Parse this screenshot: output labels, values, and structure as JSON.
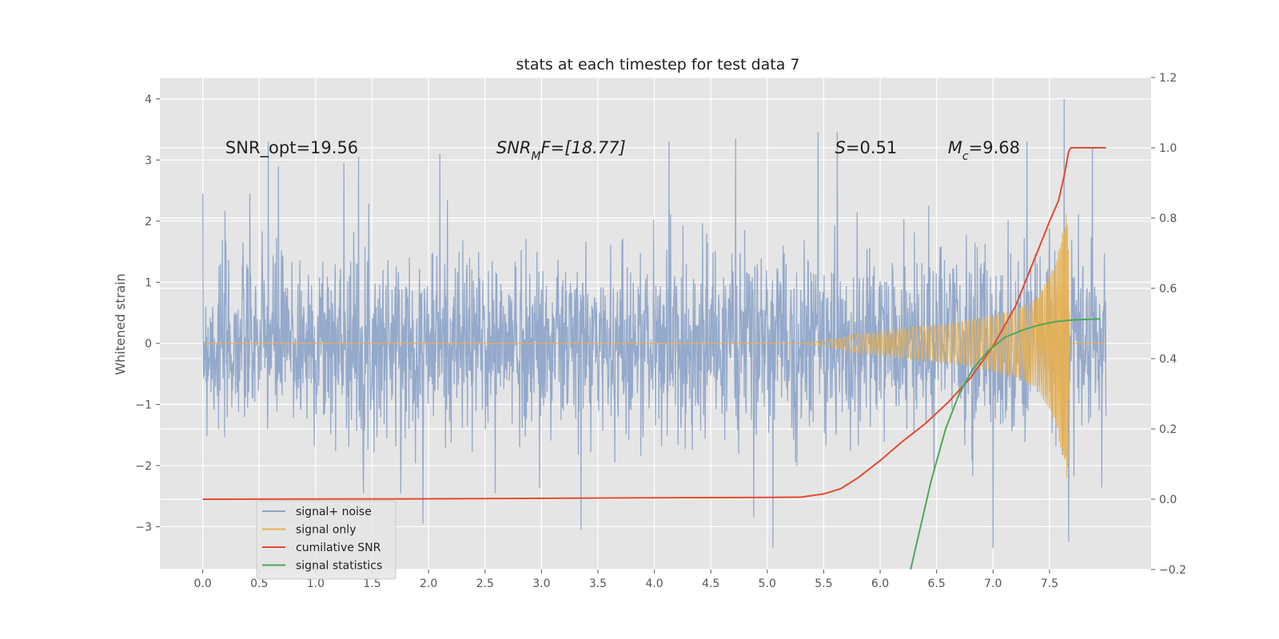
{
  "chart_data": {
    "type": "line",
    "title": "stats at each timestep for test data 7",
    "ylabel": "Whitened strain",
    "xlabel": "",
    "xlim": [
      -0.38,
      8.4
    ],
    "ylim": [
      -3.7,
      4.35
    ],
    "y2lim": [
      -0.2,
      1.2
    ],
    "x_ticks": [
      "0.0",
      "0.5",
      "1.0",
      "1.5",
      "2.0",
      "2.5",
      "3.0",
      "3.5",
      "4.0",
      "4.5",
      "5.0",
      "5.5",
      "6.0",
      "6.5",
      "7.0",
      "7.5"
    ],
    "y_ticks": [
      "−3",
      "−2",
      "−1",
      "0",
      "1",
      "2",
      "3",
      "4"
    ],
    "y2_ticks": [
      "−0.2",
      "0.0",
      "0.2",
      "0.4",
      "0.6",
      "0.8",
      "1.0",
      "1.2"
    ],
    "grid": true,
    "legend_position": "lower-left",
    "background_color": "#e5e5e5",
    "annotations": [
      {
        "x": 0.2,
        "y": 3.2,
        "text": "SNR_opt=19.56"
      },
      {
        "x": 2.6,
        "y": 3.2,
        "text": "SNR",
        "sub": "M",
        "tail": "F=[18.77]",
        "italic": true
      },
      {
        "x": 5.6,
        "y": 3.2,
        "text": "S",
        "tail": "=0.51",
        "italic": true
      },
      {
        "x": 6.6,
        "y": 3.2,
        "text": "M",
        "sub": "c",
        "tail": "=9.68",
        "italic": true
      }
    ],
    "series": [
      {
        "name": "signal+ noise",
        "color": "#8fa5c9",
        "kind": "noise",
        "x_range": [
          0.0,
          8.0
        ],
        "typical_amplitude": 1.2,
        "peak_values": [
          {
            "x": 0.58,
            "y": 3.3
          },
          {
            "x": 0.67,
            "y": 2.9
          },
          {
            "x": 1.25,
            "y": 2.95
          },
          {
            "x": 1.38,
            "y": 3.05
          },
          {
            "x": 2.1,
            "y": 3.1
          },
          {
            "x": 4.13,
            "y": 3.3
          },
          {
            "x": 4.72,
            "y": 3.35
          },
          {
            "x": 5.45,
            "y": 3.45
          },
          {
            "x": 5.62,
            "y": 3.45
          },
          {
            "x": 7.3,
            "y": 3.3
          },
          {
            "x": 7.63,
            "y": 4.0
          },
          {
            "x": 7.88,
            "y": 3.2
          },
          {
            "x": 3.35,
            "y": -3.05
          },
          {
            "x": 4.88,
            "y": -2.85
          },
          {
            "x": 5.05,
            "y": -3.35
          },
          {
            "x": 7.0,
            "y": -3.35
          },
          {
            "x": 7.67,
            "y": -3.25
          },
          {
            "x": 1.95,
            "y": -2.95
          }
        ]
      },
      {
        "name": "signal only",
        "color": "#e8b04f",
        "kind": "chirp",
        "x": [
          0.0,
          5.3,
          5.5,
          5.8,
          6.2,
          6.6,
          6.9,
          7.2,
          7.4,
          7.55,
          7.62,
          7.66,
          7.68,
          8.0
        ],
        "amplitude": [
          0.0,
          0.0,
          0.05,
          0.15,
          0.25,
          0.32,
          0.42,
          0.55,
          0.75,
          1.3,
          1.9,
          2.3,
          0.0,
          0.0
        ]
      },
      {
        "name": "cumilative SNR",
        "color": "#e24a33",
        "axis": "right",
        "x": [
          0.0,
          2.0,
          4.0,
          5.0,
          5.3,
          5.5,
          5.65,
          5.8,
          6.0,
          6.2,
          6.4,
          6.6,
          6.8,
          7.0,
          7.2,
          7.4,
          7.5,
          7.58,
          7.63,
          7.67,
          7.69,
          8.0
        ],
        "y": [
          0.0,
          0.001,
          0.004,
          0.005,
          0.006,
          0.015,
          0.03,
          0.06,
          0.11,
          0.165,
          0.215,
          0.275,
          0.345,
          0.435,
          0.55,
          0.71,
          0.79,
          0.85,
          0.92,
          0.99,
          1.0,
          1.0
        ]
      },
      {
        "name": "signal statistics",
        "color": "#4da858",
        "axis": "right",
        "x": [
          6.27,
          6.45,
          6.58,
          6.7,
          6.82,
          6.95,
          7.1,
          7.25,
          7.4,
          7.55,
          7.7,
          7.85,
          7.95
        ],
        "y": [
          -0.2,
          0.05,
          0.2,
          0.3,
          0.37,
          0.42,
          0.46,
          0.48,
          0.495,
          0.505,
          0.51,
          0.512,
          0.513
        ]
      }
    ]
  }
}
